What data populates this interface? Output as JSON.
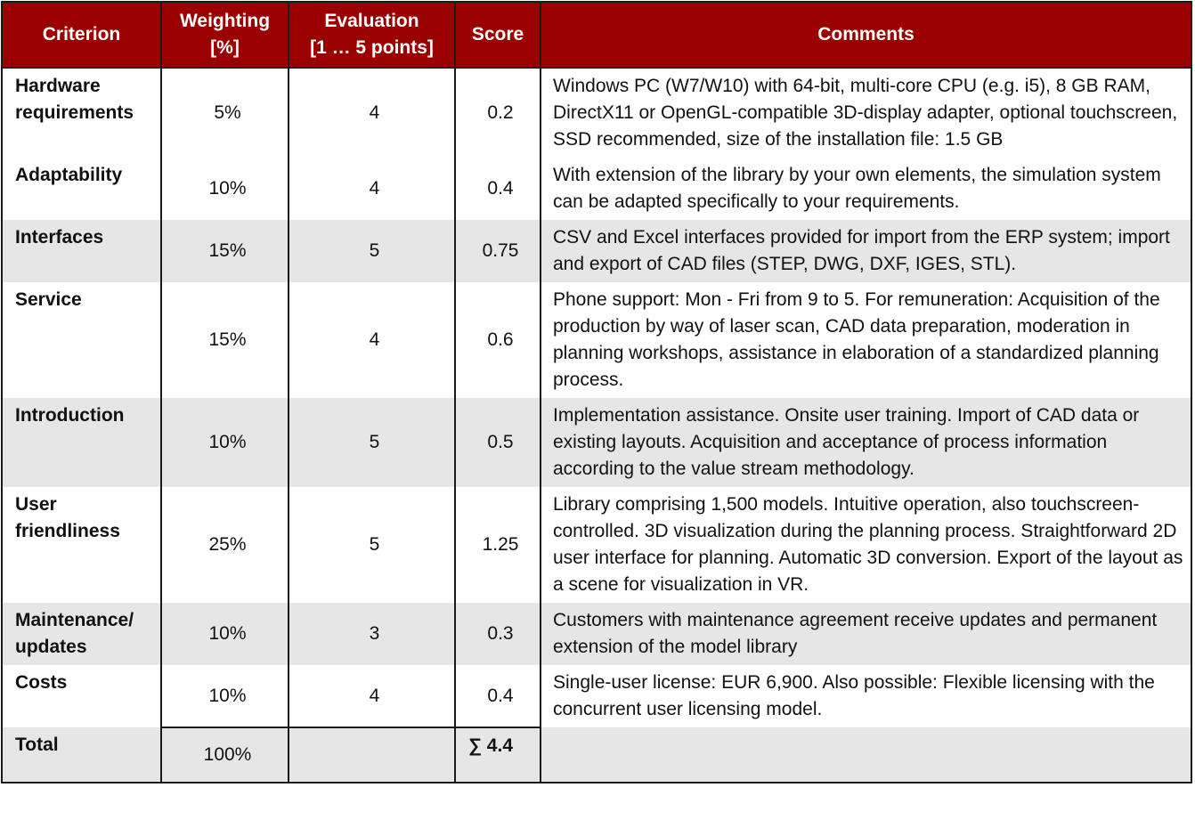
{
  "header": {
    "criterion": "Criterion",
    "weighting_line1": "Weighting",
    "weighting_line2": "[%]",
    "evaluation_line1": "Evaluation",
    "evaluation_line2": "[1 … 5 points]",
    "score": "Score",
    "comments": "Comments"
  },
  "rows": [
    {
      "criterion": "Hardware requirements",
      "weighting": "5%",
      "evaluation": "4",
      "score": "0.2",
      "comment": "Windows PC (W7/W10) with 64-bit, multi-core CPU (e.g. i5), 8 GB RAM, DirectX11 or OpenGL-compatible 3D-display adapter, optional touchscreen, SSD recommended, size of the installation file: 1.5 GB"
    },
    {
      "criterion": "Adaptability",
      "weighting": "10%",
      "evaluation": "4",
      "score": "0.4",
      "comment": "With extension of the library by your own elements, the simulation system can be adapted specifically to your requirements."
    },
    {
      "criterion": "Interfaces",
      "weighting": "15%",
      "evaluation": "5",
      "score": "0.75",
      "comment": "CSV and Excel interfaces provided for import from the ERP system; import and export of CAD files (STEP, DWG, DXF, IGES, STL)."
    },
    {
      "criterion": "Service",
      "weighting": "15%",
      "evaluation": "4",
      "score": "0.6",
      "comment": "Phone support: Mon - Fri from 9 to 5. For remuneration: Acquisition of the production by way of laser scan, CAD data preparation, moderation in planning workshops, assistance in elaboration of a standardized planning process."
    },
    {
      "criterion": "Introduction",
      "weighting": "10%",
      "evaluation": "5",
      "score": "0.5",
      "comment": "Implementation assistance. Onsite user training. Import of CAD data or existing layouts. Acquisition and acceptance of process information according to the value stream methodology."
    },
    {
      "criterion": "User friendliness",
      "weighting": "25%",
      "evaluation": "5",
      "score": "1.25",
      "comment": "Library comprising 1,500 models. Intuitive operation, also touchscreen-controlled. 3D visualization during the planning process. Straightforward 2D user interface for planning. Automatic 3D conversion. Export of the layout as a scene for visualization in VR."
    },
    {
      "criterion": "Maintenance/ updates",
      "weighting": "10%",
      "evaluation": "3",
      "score": "0.3",
      "comment": "Customers with maintenance agreement receive updates and permanent extension of the model library"
    },
    {
      "criterion": "Costs",
      "weighting": "10%",
      "evaluation": "4",
      "score": "0.4",
      "comment": "Single-user license: EUR 6,900. Also possible: Flexible licensing with the concurrent user licensing model."
    }
  ],
  "total": {
    "label": "Total",
    "weighting": "100%",
    "evaluation": "",
    "score": "∑ 4.4",
    "comment": ""
  },
  "colors": {
    "header_bg": "#9b0000",
    "header_text": "#ffffff",
    "stripe": "#e6e6e6"
  }
}
